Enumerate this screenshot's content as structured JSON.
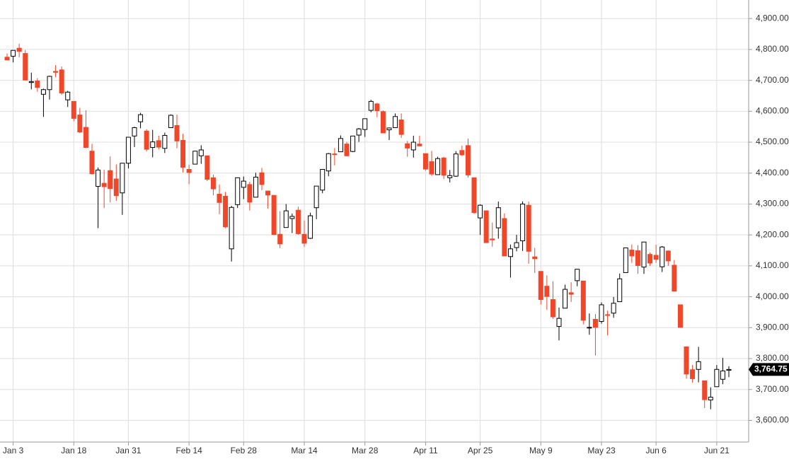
{
  "chart_data": {
    "type": "candlestick",
    "categories": [
      null,
      "Jan 3",
      null,
      null,
      null,
      null,
      null,
      null,
      null,
      null,
      null,
      "Jan 18",
      null,
      null,
      null,
      null,
      null,
      null,
      null,
      null,
      "Jan 31",
      null,
      null,
      null,
      null,
      null,
      null,
      null,
      null,
      null,
      "Feb 14",
      null,
      null,
      null,
      null,
      null,
      null,
      null,
      null,
      "Feb 28",
      null,
      null,
      null,
      null,
      null,
      null,
      null,
      null,
      null,
      "Mar 14",
      null,
      null,
      null,
      null,
      null,
      null,
      null,
      null,
      null,
      "Mar 28",
      null,
      null,
      null,
      null,
      null,
      null,
      null,
      null,
      null,
      "Apr 11",
      null,
      null,
      null,
      null,
      null,
      null,
      null,
      null,
      "Apr 25",
      null,
      null,
      null,
      null,
      null,
      null,
      null,
      null,
      null,
      "May 9",
      null,
      null,
      null,
      null,
      null,
      null,
      null,
      null,
      null,
      "May 23",
      null,
      null,
      null,
      null,
      null,
      null,
      null,
      null,
      "Jun 6",
      null,
      null,
      null,
      null,
      null,
      null,
      null,
      null,
      null,
      "Jun 21",
      null,
      null
    ],
    "open": [
      4775,
      4778,
      4804,
      4787,
      4693,
      4698,
      4655,
      4670,
      4729,
      4734,
      4637,
      4632,
      4588,
      4548,
      4471,
      4357,
      4367,
      4408,
      4381,
      4336,
      4432,
      4520,
      4566,
      4536,
      4483,
      4505,
      4480,
      4547,
      4554,
      4506,
      4412,
      4429,
      4456,
      4456,
      4385,
      4332,
      4325,
      4155,
      4298,
      4354,
      4363,
      4322,
      4401,
      4342,
      4328,
      4202,
      4224,
      4253,
      4280,
      4202,
      4189,
      4288,
      4345,
      4407,
      4462,
      4469,
      4494,
      4470,
      4523,
      4541,
      4603,
      4624,
      4599,
      4540,
      4547,
      4572,
      4495,
      4475,
      4494,
      4463,
      4437,
      4395,
      4449,
      4385,
      4390,
      4473,
      4489,
      4385,
      4255,
      4278,
      4187,
      4223,
      4253,
      4130,
      4159,
      4181,
      4296,
      4129,
      4082,
      4034,
      3991,
      3904,
      3963,
      4013,
      4052,
      4051,
      3899,
      3927,
      3920,
      3942,
      3947,
      3984,
      4078,
      4151,
      4149,
      4096,
      4137,
      4134,
      4097,
      4148,
      4102,
      3974,
      3838,
      3764,
      3765,
      3728,
      3666,
      3709,
      3733,
      3762
    ],
    "high": [
      4787,
      4797,
      4819,
      4798,
      4725,
      4707,
      4673,
      4715,
      4749,
      4745,
      4666,
      4632,
      4611,
      4603,
      4495,
      4418,
      4411,
      4454,
      4428,
      4432,
      4517,
      4550,
      4595,
      4542,
      4540,
      4521,
      4531,
      4590,
      4589,
      4527,
      4427,
      4472,
      4490,
      4456,
      4395,
      4363,
      4339,
      4294,
      4385,
      4389,
      4372,
      4401,
      4417,
      4343,
      4329,
      4277,
      4300,
      4269,
      4291,
      4247,
      4272,
      4358,
      4412,
      4465,
      4481,
      4522,
      4501,
      4520,
      4546,
      4576,
      4637,
      4627,
      4603,
      4548,
      4593,
      4593,
      4504,
      4521,
      4521,
      4463,
      4472,
      4453,
      4453,
      4410,
      4471,
      4489,
      4512,
      4386,
      4299,
      4278,
      4240,
      4308,
      4270,
      4169,
      4200,
      4308,
      4308,
      4158,
      4082,
      4069,
      4050,
      3965,
      4039,
      4047,
      4090,
      4051,
      3946,
      3944,
      3982,
      3955,
      3999,
      4075,
      4158,
      4169,
      4167,
      4177,
      4143,
      4168,
      4164,
      4150,
      4119,
      3974,
      3838,
      3779,
      3838,
      3728,
      3707,
      3779,
      3802,
      3775
    ],
    "low": [
      4765,
      4758,
      4775,
      4700,
      4671,
      4663,
      4582,
      4638,
      4710,
      4653,
      4614,
      4568,
      4530,
      4481,
      4395,
      4222,
      4287,
      4305,
      4310,
      4265,
      4415,
      4484,
      4545,
      4470,
      4451,
      4476,
      4465,
      4547,
      4480,
      4402,
      4364,
      4429,
      4430,
      4374,
      4328,
      4267,
      4222,
      4114,
      4287,
      4316,
      4279,
      4322,
      4345,
      4285,
      4199,
      4157,
      4224,
      4206,
      4200,
      4161,
      4187,
      4251,
      4335,
      4390,
      4425,
      4469,
      4455,
      4468,
      4501,
      4517,
      4597,
      4581,
      4530,
      4507,
      4547,
      4514,
      4453,
      4450,
      4487,
      4408,
      4391,
      4394,
      4381,
      4370,
      4388,
      4455,
      4385,
      4268,
      4200,
      4175,
      4162,
      4188,
      4132,
      4062,
      4147,
      4148,
      4107,
      4077,
      3975,
      3958,
      3928,
      3859,
      3963,
      3983,
      4034,
      3911,
      3877,
      3810,
      3913,
      3875,
      3932,
      3984,
      4078,
      4110,
      4074,
      4074,
      4100,
      4110,
      4080,
      4100,
      4017,
      3900,
      3735,
      3722,
      3723,
      3640,
      3636,
      3709,
      3717,
      3740
    ],
    "close": [
      4766,
      4797,
      4794,
      4701,
      4696,
      4677,
      4670,
      4713,
      4726,
      4659,
      4662,
      4577,
      4533,
      4483,
      4398,
      4410,
      4356,
      4350,
      4327,
      4432,
      4516,
      4547,
      4589,
      4477,
      4501,
      4484,
      4522,
      4587,
      4504,
      4419,
      4402,
      4471,
      4475,
      4380,
      4349,
      4305,
      4226,
      4289,
      4385,
      4374,
      4306,
      4387,
      4363,
      4329,
      4201,
      4171,
      4278,
      4260,
      4204,
      4173,
      4262,
      4358,
      4412,
      4463,
      4461,
      4512,
      4456,
      4520,
      4543,
      4576,
      4632,
      4602,
      4530,
      4546,
      4583,
      4525,
      4481,
      4500,
      4488,
      4413,
      4397,
      4447,
      4393,
      4392,
      4462,
      4459,
      4394,
      4272,
      4296,
      4175,
      4184,
      4288,
      4132,
      4155,
      4175,
      4300,
      4147,
      4123,
      3991,
      4001,
      3935,
      3930,
      4024,
      4008,
      4089,
      3924,
      3901,
      3901,
      3974,
      3941,
      3979,
      4058,
      4158,
      4132,
      4101,
      4177,
      4109,
      4121,
      4161,
      4116,
      4018,
      3901,
      3750,
      3735,
      3790,
      3667,
      3675,
      3765,
      3760,
      3764.75
    ],
    "up_color": "#000000",
    "down_color": "#f0462a",
    "ylim": [
      3530,
      4960
    ],
    "yticks": [
      {
        "value": 3600,
        "label": "3,600.00"
      },
      {
        "value": 3700,
        "label": "3,700.00"
      },
      {
        "value": 3800,
        "label": "3,800.00"
      },
      {
        "value": 3900,
        "label": "3,900.00"
      },
      {
        "value": 4000,
        "label": "4,000.00"
      },
      {
        "value": 4100,
        "label": "4,100.00"
      },
      {
        "value": 4200,
        "label": "4,200.00"
      },
      {
        "value": 4300,
        "label": "4,300.00"
      },
      {
        "value": 4400,
        "label": "4,400.00"
      },
      {
        "value": 4500,
        "label": "4,500.00"
      },
      {
        "value": 4600,
        "label": "4,600.00"
      },
      {
        "value": 4700,
        "label": "4,700.00"
      },
      {
        "value": 4800,
        "label": "4,800.00"
      },
      {
        "value": 4900,
        "label": "4,900.00"
      }
    ],
    "last_price": {
      "value": 3764.75,
      "label": "3,764.75"
    },
    "grid": true
  }
}
